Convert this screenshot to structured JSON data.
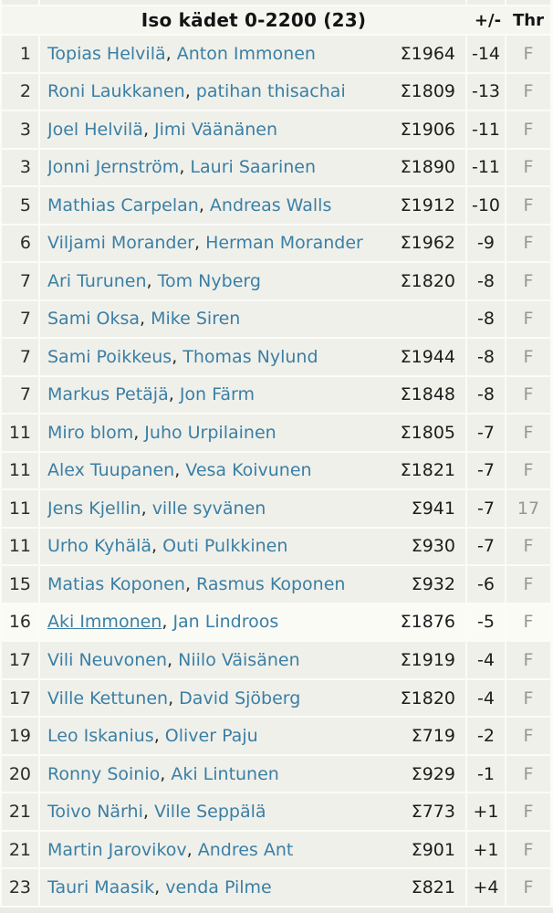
{
  "theme": {
    "accent": "#3a7fa5",
    "muted_text": "#979792",
    "row_bg": "#f0f0ea",
    "header_bg": "#f6f6f1",
    "highlight_row_bg": "#fbfbf6",
    "separator": "#fbfbf8",
    "page_bg": "#e9ebe4",
    "sliver_bg": "#eceee7",
    "name_separator": ", "
  },
  "header": {
    "title": "Iso kädet 0-2200 (23)",
    "col_plusminus": "+/-",
    "col_thr": "Thr"
  },
  "rows": [
    {
      "rank": "1",
      "p1": "Topias Helvilä",
      "p2": "Anton Immonen",
      "sum": "Σ1964",
      "score": "-14",
      "thr": "F",
      "highlight": false,
      "underline_p1": false
    },
    {
      "rank": "2",
      "p1": "Roni Laukkanen",
      "p2": "patihan thisachai",
      "sum": "Σ1809",
      "score": "-13",
      "thr": "F",
      "highlight": false,
      "underline_p1": false
    },
    {
      "rank": "3",
      "p1": "Joel Helvilä",
      "p2": "Jimi Väänänen",
      "sum": "Σ1906",
      "score": "-11",
      "thr": "F",
      "highlight": false,
      "underline_p1": false
    },
    {
      "rank": "3",
      "p1": "Jonni Jernström",
      "p2": "Lauri Saarinen",
      "sum": "Σ1890",
      "score": "-11",
      "thr": "F",
      "highlight": false,
      "underline_p1": false
    },
    {
      "rank": "5",
      "p1": "Mathias Carpelan",
      "p2": "Andreas Walls",
      "sum": "Σ1912",
      "score": "-10",
      "thr": "F",
      "highlight": false,
      "underline_p1": false
    },
    {
      "rank": "6",
      "p1": "Viljami Morander",
      "p2": "Herman Morander",
      "sum": "Σ1962",
      "score": "-9",
      "thr": "F",
      "highlight": false,
      "underline_p1": false
    },
    {
      "rank": "7",
      "p1": "Ari Turunen",
      "p2": "Tom Nyberg",
      "sum": "Σ1820",
      "score": "-8",
      "thr": "F",
      "highlight": false,
      "underline_p1": false
    },
    {
      "rank": "7",
      "p1": "Sami Oksa",
      "p2": "Mike Siren",
      "sum": "",
      "score": "-8",
      "thr": "F",
      "highlight": false,
      "underline_p1": false
    },
    {
      "rank": "7",
      "p1": "Sami Poikkeus",
      "p2": "Thomas Nylund",
      "sum": "Σ1944",
      "score": "-8",
      "thr": "F",
      "highlight": false,
      "underline_p1": false
    },
    {
      "rank": "7",
      "p1": "Markus Petäjä",
      "p2": "Jon Färm",
      "sum": "Σ1848",
      "score": "-8",
      "thr": "F",
      "highlight": false,
      "underline_p1": false
    },
    {
      "rank": "11",
      "p1": "Miro blom",
      "p2": "Juho Urpilainen",
      "sum": "Σ1805",
      "score": "-7",
      "thr": "F",
      "highlight": false,
      "underline_p1": false
    },
    {
      "rank": "11",
      "p1": "Alex Tuupanen",
      "p2": "Vesa Koivunen",
      "sum": "Σ1821",
      "score": "-7",
      "thr": "F",
      "highlight": false,
      "underline_p1": false
    },
    {
      "rank": "11",
      "p1": "Jens Kjellin",
      "p2": "ville syvänen",
      "sum": "Σ941",
      "score": "-7",
      "thr": "17",
      "highlight": false,
      "underline_p1": false
    },
    {
      "rank": "11",
      "p1": "Urho Kyhälä",
      "p2": "Outi Pulkkinen",
      "sum": "Σ930",
      "score": "-7",
      "thr": "F",
      "highlight": false,
      "underline_p1": false
    },
    {
      "rank": "15",
      "p1": "Matias Koponen",
      "p2": "Rasmus Koponen",
      "sum": "Σ932",
      "score": "-6",
      "thr": "F",
      "highlight": false,
      "underline_p1": false
    },
    {
      "rank": "16",
      "p1": "Aki Immonen",
      "p2": "Jan Lindroos",
      "sum": "Σ1876",
      "score": "-5",
      "thr": "F",
      "highlight": true,
      "underline_p1": true
    },
    {
      "rank": "17",
      "p1": "Vili Neuvonen",
      "p2": "Niilo Väisänen",
      "sum": "Σ1919",
      "score": "-4",
      "thr": "F",
      "highlight": false,
      "underline_p1": false
    },
    {
      "rank": "17",
      "p1": "Ville Kettunen",
      "p2": "David Sjöberg",
      "sum": "Σ1820",
      "score": "-4",
      "thr": "F",
      "highlight": false,
      "underline_p1": false
    },
    {
      "rank": "19",
      "p1": "Leo Iskanius",
      "p2": "Oliver Paju",
      "sum": "Σ719",
      "score": "-2",
      "thr": "F",
      "highlight": false,
      "underline_p1": false
    },
    {
      "rank": "20",
      "p1": "Ronny Soinio",
      "p2": "Aki Lintunen",
      "sum": "Σ929",
      "score": "-1",
      "thr": "F",
      "highlight": false,
      "underline_p1": false
    },
    {
      "rank": "21",
      "p1": "Toivo Närhi",
      "p2": "Ville Seppälä",
      "sum": "Σ773",
      "score": "+1",
      "thr": "F",
      "highlight": false,
      "underline_p1": false
    },
    {
      "rank": "21",
      "p1": "Martin Jarovikov",
      "p2": "Andres Ant",
      "sum": "Σ901",
      "score": "+1",
      "thr": "F",
      "highlight": false,
      "underline_p1": false
    },
    {
      "rank": "23",
      "p1": "Tauri Maasik",
      "p2": "venda Pilme",
      "sum": "Σ821",
      "score": "+4",
      "thr": "F",
      "highlight": false,
      "underline_p1": false
    }
  ]
}
